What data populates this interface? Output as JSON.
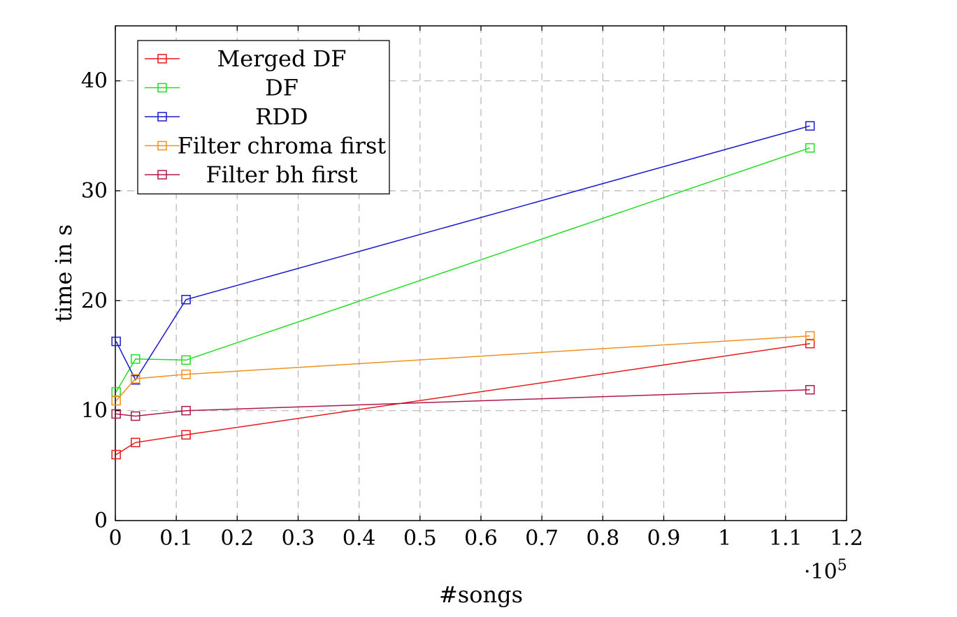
{
  "chart_data": {
    "type": "line",
    "xlabel": "#songs",
    "ylabel": "time in s",
    "x_multiplier_label": "·10",
    "x_multiplier_exponent": "5",
    "xlim": [
      0,
      1.2
    ],
    "ylim": [
      0,
      45
    ],
    "xticks": [
      0,
      0.1,
      0.2,
      0.3,
      0.4,
      0.5,
      0.6,
      0.7,
      0.8,
      0.9,
      1,
      1.1,
      1.2
    ],
    "xtick_labels": [
      "0",
      "0.1",
      "0.2",
      "0.3",
      "0.4",
      "0.5",
      "0.6",
      "0.7",
      "0.8",
      "0.9",
      "1",
      "1.1",
      "1.2"
    ],
    "yticks": [
      0,
      10,
      20,
      30,
      40
    ],
    "ytick_labels": [
      "0",
      "10",
      "20",
      "30",
      "40"
    ],
    "grid": true,
    "legend_position": "top-left",
    "marker": "square",
    "x": [
      0.0013,
      0.033,
      0.116,
      1.14
    ],
    "series": [
      {
        "name": "Merged DF",
        "color": "#e41a1c",
        "values": [
          6.0,
          7.1,
          7.8,
          16.1
        ]
      },
      {
        "name": "DF",
        "color": "#22dd22",
        "values": [
          11.7,
          14.7,
          14.6,
          33.9
        ]
      },
      {
        "name": "RDD",
        "color": "#1a1acc",
        "values": [
          16.3,
          12.8,
          20.1,
          35.9
        ]
      },
      {
        "name": "Filter chroma first",
        "color": "#f0901e",
        "values": [
          10.9,
          12.9,
          13.3,
          16.8
        ]
      },
      {
        "name": "Filter bh first",
        "color": "#b0174a",
        "values": [
          9.7,
          9.5,
          10.0,
          11.9
        ]
      }
    ]
  }
}
